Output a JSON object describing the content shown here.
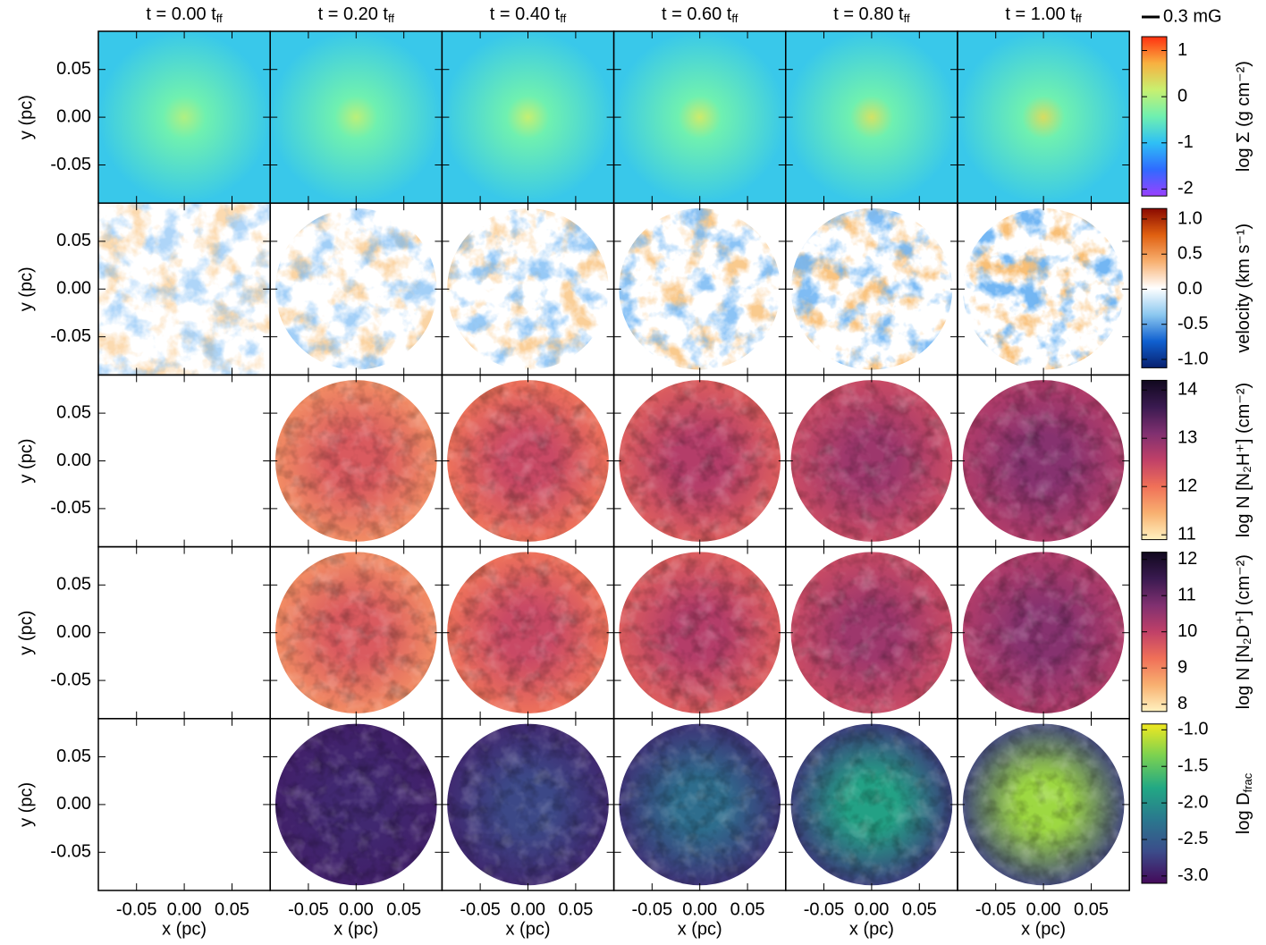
{
  "chart_data": {
    "type": "image-grid",
    "column_titles": [
      "t = 0.00 t",
      "t = 0.20 t",
      "t = 0.40 t",
      "t = 0.60 t",
      "t = 0.80 t",
      "t = 1.00 t"
    ],
    "title_subscript": "ff",
    "xlabel": "x (pc)",
    "ylabel": "y (pc)",
    "xlim": [
      -0.09,
      0.09
    ],
    "ylim": [
      -0.09,
      0.09
    ],
    "xticks": [
      {
        "value": -0.05,
        "label": "-0.05"
      },
      {
        "value": 0,
        "label": "0.00"
      },
      {
        "value": 0.05,
        "label": "0.05"
      }
    ],
    "yticks": [
      {
        "value": -0.05,
        "label": "-0.05"
      },
      {
        "value": 0,
        "label": "0.00"
      },
      {
        "value": 0.05,
        "label": "0.05"
      }
    ],
    "scale_bar_label": "0.3 mG",
    "rows": [
      {
        "label": "log Σ (g cm⁻²)",
        "clim": [
          -2.15,
          1.3
        ],
        "cticks": [
          -2,
          -1,
          0,
          1
        ],
        "colormap": [
          "#9a40ff",
          "#2f6bff",
          "#2fc0f5",
          "#6ff0b0",
          "#c8f070",
          "#f8b040",
          "#ff3010"
        ]
      },
      {
        "label": "velocity (km s⁻¹)",
        "clim": [
          -1.12,
          1.15
        ],
        "cticks": [
          {
            "value": -1,
            "label": "-1.0"
          },
          -0.5,
          {
            "value": 0,
            "label": "0.0"
          },
          0.5,
          {
            "value": 1,
            "label": "1.0"
          }
        ],
        "colormap": [
          "#08206e",
          "#1060d0",
          "#8cc8f0",
          "#ffffff",
          "#f8b070",
          "#e06010",
          "#8a0a00"
        ]
      },
      {
        "label": "log N [N₂H⁺] (cm⁻²)",
        "clim": [
          10.9,
          14.2
        ],
        "cticks": [
          11,
          12,
          13,
          14
        ],
        "colormap": [
          "#fff2c0",
          "#f8b070",
          "#f07058",
          "#c04068",
          "#803070",
          "#3a1a50",
          "#10081e"
        ]
      },
      {
        "label": "log N [N₂D⁺] (cm⁻²)",
        "clim": [
          7.8,
          12.2
        ],
        "cticks": [
          8,
          9,
          10,
          11,
          12
        ],
        "colormap": [
          "#fff2c0",
          "#f8b070",
          "#f07058",
          "#c04068",
          "#803070",
          "#3a1a50",
          "#10081e"
        ]
      },
      {
        "label": "log D",
        "label_subscript": "frac",
        "clim": [
          -3.1,
          -0.92
        ],
        "cticks": [
          {
            "value": -3,
            "label": "-3.0"
          },
          -2.5,
          {
            "value": -2,
            "label": "-2.0"
          },
          -1.5,
          {
            "value": -1,
            "label": "-1.0"
          }
        ],
        "colormap": [
          "#440a5a",
          "#3b4c8a",
          "#2a788e",
          "#22a884",
          "#7ad151",
          "#f0e820"
        ]
      }
    ]
  }
}
